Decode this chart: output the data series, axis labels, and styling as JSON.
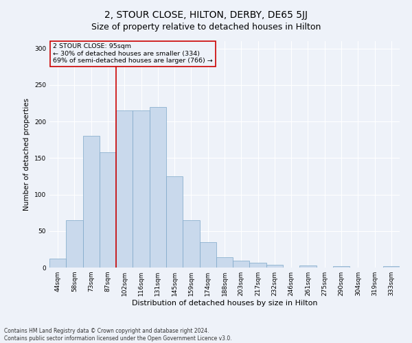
{
  "title": "2, STOUR CLOSE, HILTON, DERBY, DE65 5JJ",
  "subtitle": "Size of property relative to detached houses in Hilton",
  "xlabel": "Distribution of detached houses by size in Hilton",
  "ylabel": "Number of detached properties",
  "bar_labels": [
    "44sqm",
    "58sqm",
    "73sqm",
    "87sqm",
    "102sqm",
    "116sqm",
    "131sqm",
    "145sqm",
    "159sqm",
    "174sqm",
    "188sqm",
    "203sqm",
    "217sqm",
    "232sqm",
    "246sqm",
    "261sqm",
    "275sqm",
    "290sqm",
    "304sqm",
    "319sqm",
    "333sqm"
  ],
  "bar_values": [
    12,
    65,
    180,
    158,
    215,
    215,
    220,
    125,
    65,
    35,
    14,
    9,
    7,
    4,
    0,
    3,
    0,
    2,
    0,
    0,
    2
  ],
  "bar_color": "#c9d9ec",
  "bar_edgecolor": "#7ca6c8",
  "vline_pos": 3.5,
  "vline_color": "#cc0000",
  "annotation_text": "2 STOUR CLOSE: 95sqm\n← 30% of detached houses are smaller (334)\n69% of semi-detached houses are larger (766) →",
  "annotation_box_edgecolor": "#cc0000",
  "ylim": [
    0,
    310
  ],
  "yticks": [
    0,
    50,
    100,
    150,
    200,
    250,
    300
  ],
  "footer_line1": "Contains HM Land Registry data © Crown copyright and database right 2024.",
  "footer_line2": "Contains public sector information licensed under the Open Government Licence v3.0.",
  "background_color": "#eef2f9",
  "title_fontsize": 10,
  "subtitle_fontsize": 9,
  "xlabel_fontsize": 8,
  "ylabel_fontsize": 7.5,
  "tick_fontsize": 6.5,
  "annotation_fontsize": 6.8,
  "footer_fontsize": 5.5
}
